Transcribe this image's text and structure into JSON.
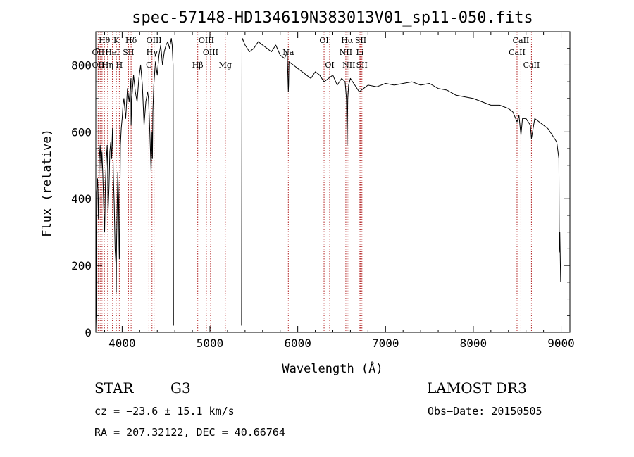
{
  "chart_data": {
    "type": "line",
    "title": "spec-57148-HD134619N383013V01_sp11-050.fits",
    "xlabel": "Wavelength (Å)",
    "ylabel": "Flux (relative)",
    "xlim": [
      3700,
      9100
    ],
    "ylim": [
      0,
      900
    ],
    "xticks": [
      4000,
      5000,
      6000,
      7000,
      8000,
      9000
    ],
    "yticks": [
      0,
      200,
      400,
      600,
      800
    ],
    "series": [
      {
        "name": "flux",
        "x": [
          3700,
          3705,
          3710,
          3720,
          3730,
          3740,
          3750,
          3760,
          3770,
          3780,
          3790,
          3800,
          3810,
          3820,
          3830,
          3835,
          3840,
          3850,
          3860,
          3870,
          3880,
          3890,
          3900,
          3910,
          3920,
          3930,
          3933,
          3936,
          3940,
          3950,
          3960,
          3965,
          3968,
          3972,
          3980,
          3990,
          4000,
          4010,
          4020,
          4040,
          4060,
          4080,
          4100,
          4102,
          4110,
          4130,
          4150,
          4170,
          4190,
          4210,
          4230,
          4250,
          4270,
          4290,
          4300,
          4310,
          4320,
          4330,
          4340,
          4345,
          4350,
          4360,
          4380,
          4400,
          4420,
          4440,
          4460,
          4480,
          4500,
          4520,
          4540,
          4560,
          4570,
          4580,
          4585
        ],
        "y": [
          0,
          60,
          420,
          460,
          340,
          520,
          560,
          480,
          540,
          470,
          380,
          300,
          450,
          520,
          560,
          490,
          360,
          430,
          540,
          570,
          520,
          610,
          470,
          380,
          250,
          200,
          120,
          260,
          320,
          480,
          400,
          260,
          220,
          300,
          560,
          610,
          640,
          680,
          700,
          640,
          730,
          690,
          760,
          620,
          700,
          770,
          720,
          690,
          760,
          800,
          740,
          620,
          690,
          720,
          700,
          640,
          560,
          480,
          600,
          520,
          660,
          740,
          810,
          770,
          830,
          860,
          800,
          840,
          860,
          870,
          850,
          880,
          860,
          800,
          20
        ]
      },
      {
        "name": "flux",
        "x": [
          5360,
          5365,
          5370,
          5400,
          5450,
          5500,
          5550,
          5600,
          5650,
          5700,
          5750,
          5800,
          5850,
          5880,
          5893,
          5896,
          5900,
          5950,
          6000,
          6050,
          6100,
          6150,
          6200,
          6250,
          6300,
          6350,
          6400,
          6450,
          6500,
          6540,
          6555,
          6563,
          6570,
          6580,
          6600,
          6650,
          6700,
          6750,
          6800,
          6900,
          7000,
          7100,
          7200,
          7300,
          7400,
          7500,
          7600,
          7700,
          7800,
          7900,
          8000,
          8100,
          8200,
          8300,
          8400,
          8450,
          8498,
          8520,
          8542,
          8560,
          8600,
          8650,
          8662,
          8700,
          8750,
          8800,
          8850,
          8900,
          8950,
          8975,
          8980,
          8985,
          8995
        ],
        "y": [
          20,
          870,
          880,
          860,
          840,
          850,
          870,
          860,
          850,
          840,
          860,
          830,
          820,
          840,
          720,
          740,
          810,
          800,
          790,
          780,
          770,
          760,
          780,
          770,
          750,
          760,
          770,
          740,
          760,
          750,
          700,
          560,
          700,
          740,
          760,
          740,
          720,
          730,
          740,
          735,
          745,
          740,
          745,
          750,
          740,
          745,
          730,
          725,
          710,
          705,
          700,
          690,
          680,
          680,
          670,
          660,
          630,
          650,
          590,
          640,
          640,
          620,
          580,
          640,
          630,
          620,
          610,
          590,
          570,
          520,
          240,
          300,
          150
        ]
      }
    ],
    "line_labels": [
      {
        "name": "OII",
        "x": 3727,
        "row": 2
      },
      {
        "name": "Hθ",
        "x": 3798,
        "row": 1
      },
      {
        "name": "OII",
        "x": 3727,
        "row": 3
      },
      {
        "name": "Hη",
        "x": 3835,
        "row": 3
      },
      {
        "name": "HeI",
        "x": 3889,
        "row": 2
      },
      {
        "name": "K",
        "x": 3934,
        "row": 1
      },
      {
        "name": "H",
        "x": 3968,
        "row": 3
      },
      {
        "name": "SII",
        "x": 4072,
        "row": 2
      },
      {
        "name": "Hδ",
        "x": 4102,
        "row": 1
      },
      {
        "name": "OIII",
        "x": 4363,
        "row": 1
      },
      {
        "name": "Hγ",
        "x": 4340,
        "row": 2
      },
      {
        "name": "G",
        "x": 4305,
        "row": 3
      },
      {
        "name": "OIII",
        "x": 4959,
        "row": 1
      },
      {
        "name": "OIII",
        "x": 5007,
        "row": 2
      },
      {
        "name": "Hβ",
        "x": 4861,
        "row": 3
      },
      {
        "name": "Mg",
        "x": 5175,
        "row": 3
      },
      {
        "name": "Na",
        "x": 5893,
        "row": 2
      },
      {
        "name": "OI",
        "x": 6300,
        "row": 1
      },
      {
        "name": "OI",
        "x": 6364,
        "row": 3
      },
      {
        "name": "Hα",
        "x": 6563,
        "row": 1
      },
      {
        "name": "NII",
        "x": 6548,
        "row": 2
      },
      {
        "name": "NII",
        "x": 6583,
        "row": 3
      },
      {
        "name": "SII",
        "x": 6717,
        "row": 1
      },
      {
        "name": "Li",
        "x": 6708,
        "row": 2
      },
      {
        "name": "SII",
        "x": 6731,
        "row": 3
      },
      {
        "name": "CaII",
        "x": 8542,
        "row": 1
      },
      {
        "name": "CaII",
        "x": 8498,
        "row": 2
      },
      {
        "name": "CaII",
        "x": 8662,
        "row": 3
      }
    ],
    "line_markers": [
      3727,
      3750,
      3771,
      3798,
      3835,
      3889,
      3934,
      3968,
      4072,
      4102,
      4305,
      4340,
      4363,
      4861,
      4959,
      5007,
      5175,
      5893,
      6300,
      6364,
      6548,
      6563,
      6583,
      6708,
      6717,
      6731,
      8498,
      8542,
      8662
    ]
  },
  "info": {
    "class": "STAR",
    "subclass": "G3",
    "survey": "LAMOST DR3",
    "cz": "cz = −23.6 ± 15.1 km/s",
    "obs_date": "Obs−Date: 20150505",
    "coords": "RA = 207.32122, DEC =  40.66764"
  },
  "colors": {
    "line": "#000000",
    "marker": "#b22222"
  }
}
